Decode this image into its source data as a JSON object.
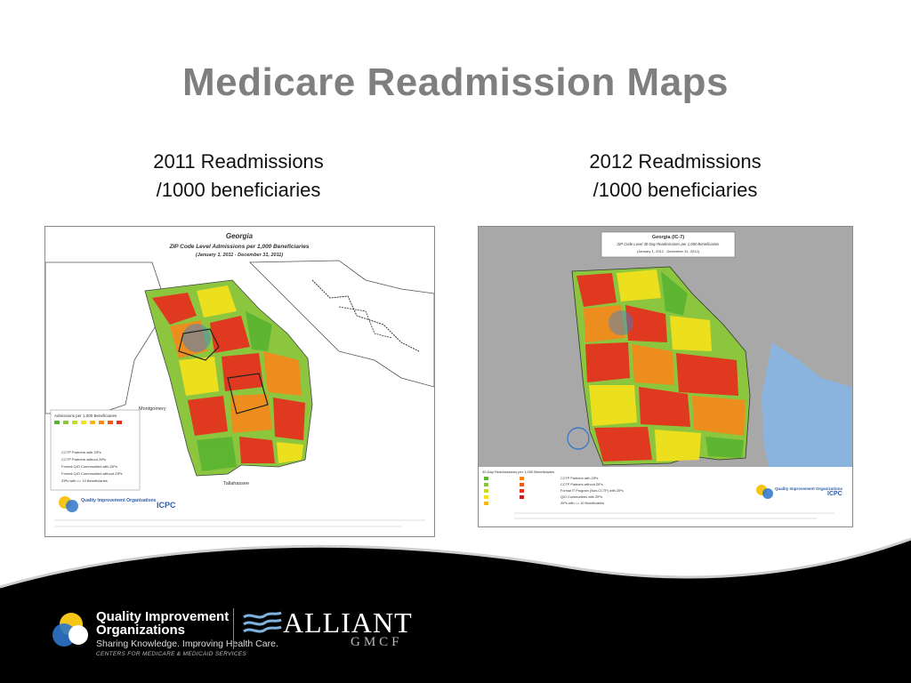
{
  "slide": {
    "title": "Medicare Readmission Maps"
  },
  "left": {
    "caption_line1": "2011 Readmissions",
    "caption_line2": "/1000 beneficiaries",
    "map_title_1": "Georgia",
    "map_title_2": "ZIP Code Level Admissions per 1,000 Beneficiaries",
    "map_title_3": "(January 1, 2011 - December 31, 2011)",
    "legend_title": "Admissions per 1,000 Beneficiaries",
    "legend_items": [
      "CCTP Partners with ZIPs",
      "CCTP Partners without ZIPs",
      "Formal QIO Communities with ZIPs",
      "Formal QIO Communities without ZIPs",
      "ZIPs with <= 10 Beneficiaries"
    ],
    "city_labels": [
      "Montgomery",
      "Tallahassee"
    ],
    "logo_title": "Quality Improvement Organizations",
    "icpc": "ICPC"
  },
  "right": {
    "caption_line1": "2012 Readmissions",
    "caption_line2": "/1000 beneficiaries",
    "map_title_1": "Georgia (IC-7)",
    "map_title_2": "ZIP Code Level 30-Day Readmissions per 1,000 Beneficiaries",
    "map_title_3": "(January 1, 2012 - December 31, 2012)",
    "legend_title": "30-Day Readmissions per 1,000 Beneficiaries",
    "legend_items": [
      "CCTP Partners with ZIPs",
      "CCTP Partners without ZIPs",
      "Formal IT Program (Non-CCTP) with ZIPs",
      "QIO Communities with ZIPs",
      "ZIPs with <= 10 Beneficiaries"
    ],
    "logo_title": "Quality Improvement Organizations",
    "icpc": "ICPC"
  },
  "footer": {
    "qio_line1": "Quality Improvement",
    "qio_line2": "Organizations",
    "qio_tagline": "Sharing Knowledge. Improving Health Care.",
    "qio_sub": "CENTERS FOR MEDICARE & MEDICAID SERVICES",
    "alliant": "ALLIANT",
    "gmcf": "GMCF"
  },
  "colors": {
    "title_gray": "#7f7f7f",
    "map_green": "#5cb531",
    "map_yellow": "#f2e11c",
    "map_orange": "#f28a1c",
    "map_red": "#e4321f",
    "footer_black": "#000000"
  }
}
